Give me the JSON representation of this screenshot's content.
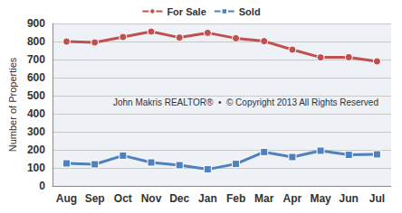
{
  "chart_data": {
    "type": "line",
    "categories": [
      "Aug",
      "Sep",
      "Oct",
      "Nov",
      "Dec",
      "Jan",
      "Feb",
      "Mar",
      "Apr",
      "May",
      "Jun",
      "Jul"
    ],
    "series": [
      {
        "name": "For Sale",
        "color": "#c0504d",
        "marker": "circle",
        "line_style": "solid",
        "values": [
          800,
          795,
          825,
          855,
          822,
          848,
          818,
          802,
          755,
          712,
          713,
          690
        ]
      },
      {
        "name": "Sold",
        "color": "#4f81bd",
        "marker": "square",
        "line_style": "solid",
        "values": [
          125,
          120,
          168,
          130,
          115,
          92,
          122,
          188,
          160,
          195,
          172,
          175
        ]
      }
    ],
    "ylabel": "Number of Properties",
    "annotations": [
      "John Makris REALTOR®  •  © Copyright 2013 All Rights Reserved"
    ],
    "ylim": [
      0,
      900
    ],
    "yticks": [
      0,
      100,
      200,
      300,
      400,
      500,
      600,
      700,
      800,
      900
    ],
    "grid": true,
    "legend": "top"
  }
}
